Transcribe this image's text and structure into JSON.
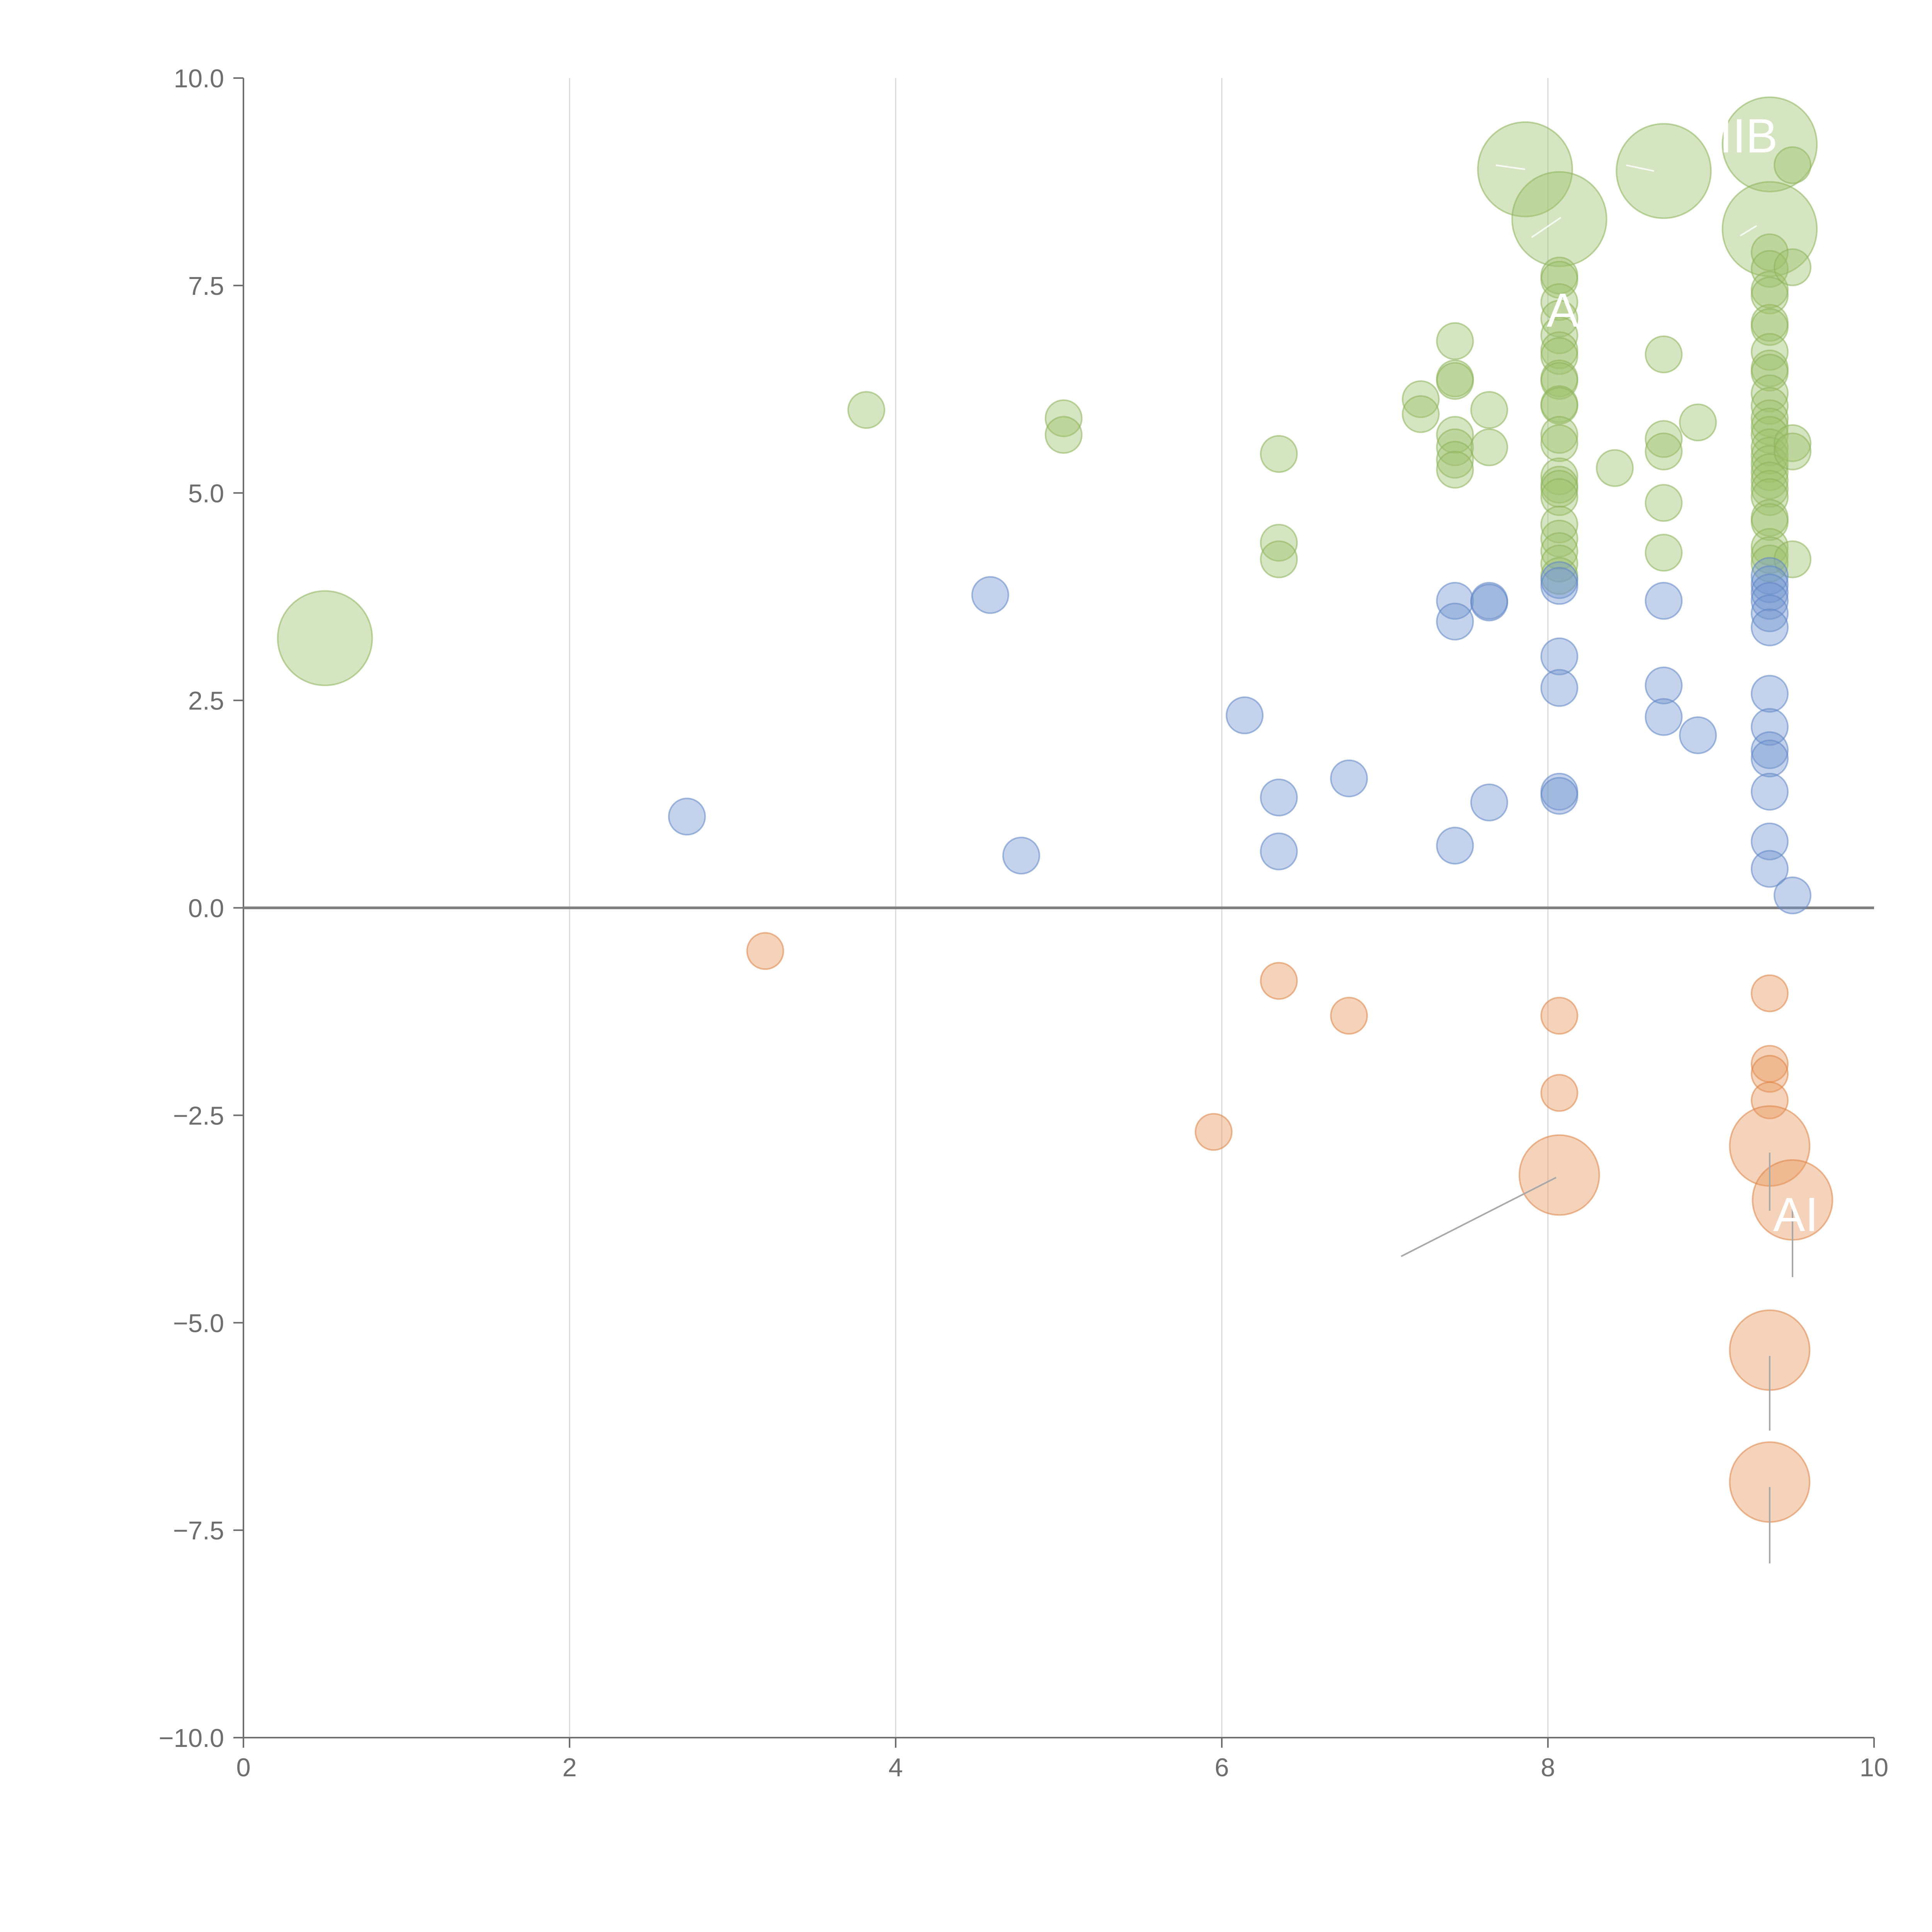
{
  "chart_data": {
    "type": "scatter",
    "title": "",
    "xlabel": "",
    "ylabel": "",
    "xlim": [
      0,
      10
    ],
    "ylim": [
      -10,
      10
    ],
    "xticks": [
      "0",
      "2",
      "4",
      "6",
      "8",
      "10"
    ],
    "yticks": [
      "10.0",
      "7.5",
      "5.0",
      "2.5",
      "0.0",
      "−2.5",
      "−5.0",
      "−7.5",
      "−10.0"
    ],
    "x_grid": true,
    "y_grid": false,
    "zero_line": true,
    "legend": "none",
    "colors": {
      "green_fill": "#9dc16c",
      "green_stroke": "#8db25a",
      "blue_fill": "#7396cf",
      "blue_stroke": "#5f85c4",
      "orange_fill": "#e8975a",
      "orange_stroke": "#dc8445",
      "axis": "#6e6e6e",
      "grid": "#d9d9d9",
      "zero_line": "#808080"
    },
    "series": [
      {
        "color": "green",
        "points": [
          [
            0.5,
            3.25,
            2.6
          ],
          [
            3.82,
            6.0,
            1
          ],
          [
            5.03,
            5.9,
            1
          ],
          [
            5.03,
            5.7,
            1
          ],
          [
            6.35,
            5.47,
            1
          ],
          [
            6.35,
            4.4,
            1
          ],
          [
            6.35,
            4.2,
            1
          ],
          [
            7.22,
            6.13,
            1
          ],
          [
            7.22,
            5.95,
            1
          ],
          [
            7.43,
            6.83,
            1
          ],
          [
            7.43,
            6.38,
            1
          ],
          [
            7.43,
            6.35,
            1
          ],
          [
            7.43,
            5.7,
            1
          ],
          [
            7.43,
            5.55,
            1
          ],
          [
            7.43,
            5.4,
            1
          ],
          [
            7.43,
            5.28,
            1
          ],
          [
            7.64,
            6.0,
            1
          ],
          [
            7.64,
            5.55,
            1
          ],
          [
            7.86,
            8.9,
            2.6
          ],
          [
            8.07,
            8.3,
            2.6
          ],
          [
            8.07,
            7.62,
            1
          ],
          [
            8.07,
            7.57,
            1
          ],
          [
            8.07,
            7.3,
            1
          ],
          [
            8.07,
            7.1,
            1
          ],
          [
            8.07,
            6.9,
            1
          ],
          [
            8.07,
            6.72,
            1
          ],
          [
            8.07,
            6.65,
            1
          ],
          [
            8.07,
            6.38,
            1
          ],
          [
            8.07,
            6.35,
            1
          ],
          [
            8.07,
            6.07,
            1
          ],
          [
            8.07,
            6.05,
            1
          ],
          [
            8.07,
            5.7,
            1
          ],
          [
            8.07,
            5.6,
            1
          ],
          [
            8.07,
            5.2,
            1
          ],
          [
            8.07,
            5.1,
            1
          ],
          [
            8.07,
            5.05,
            1
          ],
          [
            8.07,
            4.95,
            1
          ],
          [
            8.07,
            4.62,
            1
          ],
          [
            8.07,
            4.45,
            1
          ],
          [
            8.07,
            4.3,
            1
          ],
          [
            8.07,
            4.15,
            1
          ],
          [
            8.07,
            4.0,
            1
          ],
          [
            8.41,
            5.3,
            1
          ],
          [
            8.71,
            8.88,
            2.6
          ],
          [
            8.71,
            6.67,
            1
          ],
          [
            8.71,
            5.65,
            1
          ],
          [
            8.71,
            5.5,
            1
          ],
          [
            8.71,
            4.88,
            1
          ],
          [
            8.71,
            4.28,
            1
          ],
          [
            8.92,
            5.85,
            1
          ],
          [
            9.36,
            9.2,
            2.6
          ],
          [
            9.36,
            8.18,
            2.6
          ],
          [
            9.36,
            7.9,
            1
          ],
          [
            9.36,
            7.7,
            1
          ],
          [
            9.36,
            7.45,
            1
          ],
          [
            9.36,
            7.38,
            1
          ],
          [
            9.36,
            7.05,
            1
          ],
          [
            9.36,
            7.0,
            1
          ],
          [
            9.36,
            6.7,
            1
          ],
          [
            9.36,
            6.5,
            1
          ],
          [
            9.36,
            6.45,
            1
          ],
          [
            9.36,
            6.2,
            1
          ],
          [
            9.36,
            6.05,
            1
          ],
          [
            9.36,
            5.9,
            1
          ],
          [
            9.36,
            5.8,
            1
          ],
          [
            9.36,
            5.7,
            1
          ],
          [
            9.36,
            5.55,
            1
          ],
          [
            9.36,
            5.45,
            1
          ],
          [
            9.36,
            5.35,
            1
          ],
          [
            9.36,
            5.25,
            1
          ],
          [
            9.36,
            5.15,
            1
          ],
          [
            9.36,
            5.05,
            1
          ],
          [
            9.36,
            4.95,
            1
          ],
          [
            9.36,
            4.7,
            1
          ],
          [
            9.36,
            4.65,
            1
          ],
          [
            9.36,
            4.35,
            1
          ],
          [
            9.36,
            4.25,
            1
          ],
          [
            9.36,
            4.15,
            1
          ],
          [
            9.5,
            8.95,
            1
          ],
          [
            9.5,
            7.72,
            1
          ],
          [
            9.5,
            5.6,
            1
          ],
          [
            9.5,
            5.5,
            1
          ],
          [
            9.5,
            4.2,
            1
          ]
        ]
      },
      {
        "color": "blue",
        "points": [
          [
            2.72,
            1.1,
            1
          ],
          [
            4.58,
            3.77,
            1
          ],
          [
            4.77,
            0.63,
            1
          ],
          [
            6.14,
            2.32,
            1
          ],
          [
            6.35,
            1.33,
            1
          ],
          [
            6.35,
            0.68,
            1
          ],
          [
            6.78,
            1.56,
            1
          ],
          [
            7.43,
            3.7,
            1
          ],
          [
            7.43,
            3.45,
            1
          ],
          [
            7.43,
            0.75,
            1
          ],
          [
            7.64,
            3.7,
            1
          ],
          [
            7.64,
            3.68,
            1
          ],
          [
            7.64,
            1.27,
            1
          ],
          [
            8.07,
            3.95,
            1
          ],
          [
            8.07,
            3.88,
            1
          ],
          [
            8.07,
            3.03,
            1
          ],
          [
            8.07,
            2.65,
            1
          ],
          [
            8.07,
            1.4,
            1
          ],
          [
            8.07,
            1.35,
            1
          ],
          [
            8.71,
            3.7,
            1
          ],
          [
            8.71,
            2.68,
            1
          ],
          [
            8.71,
            2.3,
            1
          ],
          [
            8.92,
            2.08,
            1
          ],
          [
            9.36,
            4.0,
            1
          ],
          [
            9.36,
            3.9,
            1
          ],
          [
            9.36,
            3.8,
            1
          ],
          [
            9.36,
            3.7,
            1
          ],
          [
            9.36,
            3.55,
            1
          ],
          [
            9.36,
            3.38,
            1
          ],
          [
            9.36,
            2.58,
            1
          ],
          [
            9.36,
            2.18,
            1
          ],
          [
            9.36,
            1.9,
            1
          ],
          [
            9.36,
            1.8,
            1
          ],
          [
            9.36,
            1.4,
            1
          ],
          [
            9.36,
            0.8,
            1
          ],
          [
            9.36,
            0.47,
            1
          ],
          [
            9.5,
            0.15,
            1
          ]
        ]
      },
      {
        "color": "orange",
        "points": [
          [
            3.2,
            -0.52,
            1
          ],
          [
            5.95,
            -2.7,
            1
          ],
          [
            6.35,
            -0.88,
            1
          ],
          [
            6.78,
            -1.3,
            1
          ],
          [
            8.07,
            -1.3,
            1
          ],
          [
            8.07,
            -2.23,
            1
          ],
          [
            8.07,
            -3.22,
            2.2
          ],
          [
            9.36,
            -1.03,
            1
          ],
          [
            9.36,
            -1.88,
            1
          ],
          [
            9.36,
            -2.0,
            1
          ],
          [
            9.36,
            -2.32,
            1
          ],
          [
            9.36,
            -2.87,
            2.2
          ],
          [
            9.5,
            -3.52,
            2.2
          ],
          [
            9.36,
            -5.33,
            2.2
          ],
          [
            9.36,
            -6.92,
            2.2
          ]
        ]
      }
    ],
    "annotations": [
      {
        "text": "A",
        "x": 8.09,
        "y": 7.2
      },
      {
        "text": "IIB",
        "x": 9.23,
        "y": 9.3
      },
      {
        "text": "AI",
        "x": 9.52,
        "y": -3.7
      }
    ],
    "leader_lines": [
      [
        7.1,
        -4.2,
        8.05,
        -3.25
      ],
      [
        9.36,
        -2.95,
        9.36,
        -3.65
      ],
      [
        9.5,
        -3.55,
        9.5,
        -4.45
      ],
      [
        9.36,
        -5.4,
        9.36,
        -6.3
      ],
      [
        9.36,
        -6.98,
        9.36,
        -7.9
      ],
      [
        7.68,
        8.95,
        7.86,
        8.9
      ],
      [
        8.08,
        8.32,
        7.9,
        8.08
      ],
      [
        8.65,
        8.88,
        8.48,
        8.95
      ],
      [
        9.28,
        8.22,
        9.18,
        8.1
      ]
    ]
  }
}
